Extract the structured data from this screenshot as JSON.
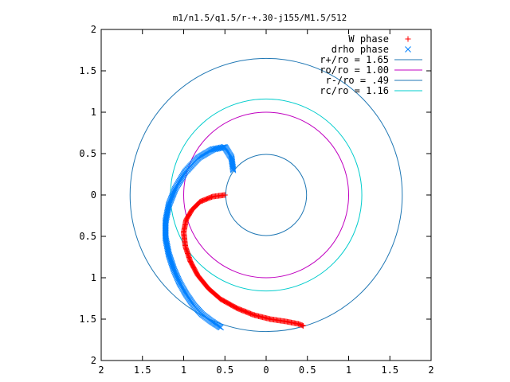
{
  "chart_data": {
    "type": "scatter",
    "title": "m1/n1.5/q1.5/r-+.30-j155/M1.5/512",
    "xlim": [
      -2,
      2
    ],
    "ylim": [
      -2,
      2
    ],
    "x_tick_values": [
      -2,
      -1.5,
      -1,
      -0.5,
      0,
      0.5,
      1,
      1.5,
      2
    ],
    "x_tick_labels": [
      "2",
      "1.5",
      "1",
      "0.5",
      "0",
      "0.5",
      "1",
      "1.5",
      "2"
    ],
    "y_tick_values": [
      2,
      1.5,
      1,
      0.5,
      0,
      -0.5,
      -1,
      -1.5,
      -2
    ],
    "y_tick_labels": [
      "2",
      "1.5",
      "1",
      "0.5",
      "0",
      "0.5",
      "1",
      "1.5",
      "2"
    ],
    "grid": false,
    "legend_position": "top-right",
    "colors": {
      "w_phase": "#ff0000",
      "drho_phase": "#0080ff",
      "r_plus": "#1f77b4",
      "ro": "#c000c0",
      "r_minus": "#1f77b4",
      "rc": "#00cccc"
    },
    "series": [
      {
        "name": "W phase",
        "marker": "plus",
        "color": "#ff0000",
        "anchors_x": [
          -0.5,
          -0.65,
          -0.8,
          -0.9,
          -0.97,
          -1.0,
          -0.98,
          -0.92,
          -0.83,
          -0.7,
          -0.55,
          -0.35,
          -0.15,
          0.05,
          0.25,
          0.4,
          0.45
        ],
        "anchors_y": [
          0.0,
          -0.02,
          -0.08,
          -0.18,
          -0.3,
          -0.45,
          -0.62,
          -0.8,
          -0.97,
          -1.13,
          -1.26,
          -1.37,
          -1.45,
          -1.5,
          -1.53,
          -1.56,
          -1.58
        ],
        "count": 220
      },
      {
        "name": "drho phase",
        "marker": "x",
        "color": "#0080ff",
        "anchors_x": [
          -0.4,
          -0.42,
          -0.5,
          -0.65,
          -0.82,
          -0.98,
          -1.1,
          -1.18,
          -1.22,
          -1.22,
          -1.18,
          -1.12,
          -1.05,
          -0.97,
          -0.88,
          -0.78,
          -0.66,
          -0.55
        ],
        "anchors_y": [
          0.3,
          0.45,
          0.58,
          0.55,
          0.45,
          0.28,
          0.08,
          -0.12,
          -0.32,
          -0.52,
          -0.72,
          -0.9,
          -1.06,
          -1.2,
          -1.33,
          -1.44,
          -1.53,
          -1.6
        ],
        "count": 220
      },
      {
        "name": "r+/ro = 1.65",
        "type": "circle",
        "radius": 1.65,
        "color": "#1f77b4"
      },
      {
        "name": "ro/ro = 1.00",
        "type": "circle",
        "radius": 1.0,
        "color": "#c000c0"
      },
      {
        "name": "r-/ro = .49",
        "type": "circle",
        "radius": 0.49,
        "color": "#1f77b4"
      },
      {
        "name": "rc/ro = 1.16",
        "type": "circle",
        "radius": 1.16,
        "color": "#00cccc"
      }
    ]
  }
}
